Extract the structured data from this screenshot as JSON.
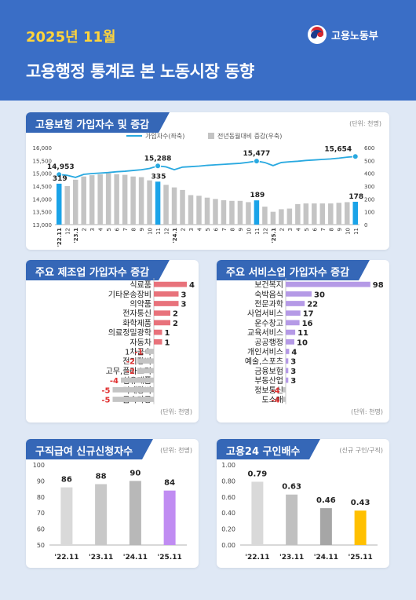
{
  "header": {
    "date": "2025년 11월",
    "title": "고용행정 통계로 본 노동시장 동향",
    "org": "고용노동부"
  },
  "colors": {
    "header_bg": "#3a6ec6",
    "title_bar": "#3567b7",
    "line": "#29a9e0",
    "gray_bar": "#c4c4c4",
    "highlight_bar": "#1aa3e8",
    "manufacturing_pos": "#e8727b",
    "service_pos": "#b59ae6",
    "negative": "#e03030",
    "purple_bar": "#c08cf2",
    "yellow_bar": "#ffc000"
  },
  "sections": {
    "insurance": {
      "title": "고용보험 가입자수 및 증감",
      "unit": "(단위: 천명)",
      "legend_line": "가입자수(좌축)",
      "legend_bar": "전년동월대비 증감(우축)"
    },
    "manufacturing": {
      "title": "주요 제조업 가입자수 증감",
      "unit": "(단위: 천명)"
    },
    "service": {
      "title": "주요 서비스업 가입자수 증감",
      "unit": "(단위: 천명)"
    },
    "jobseek": {
      "title": "구직급여 신규신청자수",
      "unit": "(단위: 천명)"
    },
    "ratio": {
      "title": "고용24 구인배수",
      "unit": "(신규 구인/구직)"
    }
  },
  "chart_data": [
    {
      "type": "line",
      "title": "고용보험 가입자수 및 증감",
      "x": [
        "'22.11",
        "12",
        "'23.1",
        "2",
        "3",
        "4",
        "5",
        "6",
        "7",
        "8",
        "9",
        "10",
        "11",
        "12",
        "'24.1",
        "2",
        "3",
        "4",
        "5",
        "6",
        "7",
        "8",
        "9",
        "10",
        "11",
        "12",
        "'25.1",
        "2",
        "3",
        "4",
        "5",
        "6",
        "7",
        "8",
        "9",
        "10",
        "11"
      ],
      "series": [
        {
          "name": "가입자수(좌축)",
          "axis": "left",
          "values": [
            14953,
            14920,
            14840,
            14960,
            14990,
            15010,
            15030,
            15060,
            15080,
            15110,
            15140,
            15190,
            15288,
            15250,
            15140,
            15240,
            15260,
            15280,
            15310,
            15330,
            15350,
            15370,
            15390,
            15430,
            15477,
            15420,
            15300,
            15420,
            15450,
            15470,
            15500,
            15520,
            15540,
            15560,
            15590,
            15630,
            15654
          ]
        },
        {
          "name": "전년동월대비 증감(우축)",
          "axis": "right",
          "values": [
            319,
            300,
            350,
            375,
            385,
            392,
            400,
            393,
            388,
            375,
            370,
            345,
            335,
            310,
            290,
            270,
            230,
            225,
            210,
            200,
            190,
            185,
            185,
            175,
            189,
            140,
            100,
            120,
            125,
            160,
            165,
            165,
            165,
            165,
            170,
            175,
            178
          ]
        }
      ],
      "labels": [
        {
          "index": 0,
          "line": "14,953",
          "bar": "319"
        },
        {
          "index": 12,
          "line": "15,288",
          "bar": "335"
        },
        {
          "index": 24,
          "line": "15,477",
          "bar": "189"
        },
        {
          "index": 36,
          "line": "15,654",
          "bar": "178"
        }
      ],
      "ylim_left": [
        13000,
        16000
      ],
      "yticks_left": [
        "16,000",
        "15,500",
        "15,000",
        "14,500",
        "14,000",
        "13,500",
        "13,000"
      ],
      "ylim_right": [
        0,
        600
      ],
      "yticks_right": [
        "600",
        "500",
        "400",
        "300",
        "200",
        "100",
        "0"
      ]
    },
    {
      "type": "bar",
      "title": "주요 제조업 가입자수 증감",
      "categories": [
        "식료품",
        "기타운송장비",
        "의약품",
        "전자통신",
        "화학제품",
        "의료정밀광학",
        "자동차",
        "1차금속",
        "전기장비",
        "고무,플라스틱",
        "섬유제품",
        "기계장비",
        "금속가공"
      ],
      "values": [
        4,
        3,
        3,
        2,
        2,
        1,
        1,
        -1,
        -2,
        -2,
        -4,
        -5,
        -5
      ]
    },
    {
      "type": "bar",
      "title": "주요 서비스업 가입자수 증감",
      "categories": [
        "보건복지",
        "숙박음식",
        "전문과학",
        "사업서비스",
        "운수창고",
        "교육서비스",
        "공공행정",
        "개인서비스",
        "예술,스포츠",
        "금융보험",
        "부동산업",
        "정보통신",
        "도소매"
      ],
      "values": [
        98,
        30,
        22,
        17,
        16,
        11,
        10,
        4,
        3,
        3,
        3,
        -4,
        -4
      ]
    },
    {
      "type": "bar",
      "title": "구직급여 신규신청자수",
      "categories": [
        "'22.11",
        "'23.11",
        "'24.11",
        "'25.11"
      ],
      "values": [
        86,
        88,
        90,
        84
      ],
      "ylim": [
        50,
        100
      ],
      "yticks": [
        "100",
        "90",
        "80",
        "70",
        "60",
        "50"
      ]
    },
    {
      "type": "bar",
      "title": "고용24 구인배수",
      "categories": [
        "'22.11",
        "'23.11",
        "'24.11",
        "'25.11"
      ],
      "values": [
        0.79,
        0.63,
        0.46,
        0.43
      ],
      "value_labels": [
        "0.79",
        "0.63",
        "0.46",
        "0.43"
      ],
      "ylim": [
        0,
        1
      ],
      "yticks": [
        "1.00",
        "0.80",
        "0.60",
        "0.40",
        "0.20",
        "0.00"
      ]
    }
  ]
}
